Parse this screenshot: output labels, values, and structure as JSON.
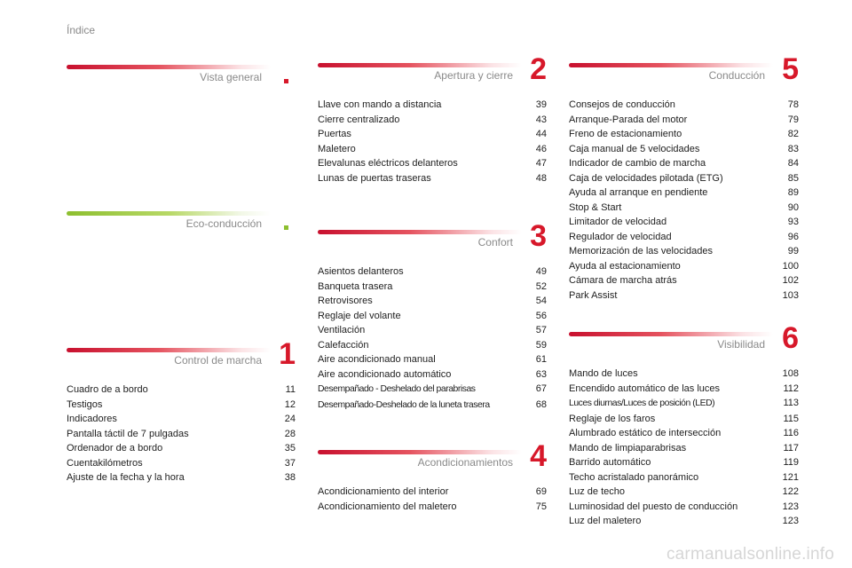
{
  "page_title": "Índice",
  "watermark": "carmanualsonline.info",
  "sections": {
    "vista": {
      "title": "Vista general",
      "number": "",
      "entries": []
    },
    "eco": {
      "title": "Eco-conducción",
      "number": "",
      "entries": []
    },
    "control": {
      "title": "Control de marcha",
      "number": "1",
      "entries": [
        {
          "label": "Cuadro de a bordo",
          "page": "11"
        },
        {
          "label": "Testigos",
          "page": "12"
        },
        {
          "label": "Indicadores",
          "page": "24"
        },
        {
          "label": "Pantalla táctil de 7 pulgadas",
          "page": "28"
        },
        {
          "label": "Ordenador de a bordo",
          "page": "35"
        },
        {
          "label": "Cuentakilómetros",
          "page": "37"
        },
        {
          "label": "Ajuste de la fecha y la hora",
          "page": "38"
        }
      ]
    },
    "apertura": {
      "title": "Apertura y cierre",
      "number": "2",
      "entries": [
        {
          "label": "Llave con mando a distancia",
          "page": "39"
        },
        {
          "label": "Cierre centralizado",
          "page": "43"
        },
        {
          "label": "Puertas",
          "page": "44"
        },
        {
          "label": "Maletero",
          "page": "46"
        },
        {
          "label": "Elevalunas eléctricos delanteros",
          "page": "47"
        },
        {
          "label": "Lunas de puertas traseras",
          "page": "48"
        }
      ]
    },
    "confort": {
      "title": "Confort",
      "number": "3",
      "entries": [
        {
          "label": "Asientos delanteros",
          "page": "49"
        },
        {
          "label": "Banqueta trasera",
          "page": "52"
        },
        {
          "label": "Retrovisores",
          "page": "54"
        },
        {
          "label": "Reglaje del volante",
          "page": "56"
        },
        {
          "label": "Ventilación",
          "page": "57"
        },
        {
          "label": "Calefacción",
          "page": "59"
        },
        {
          "label": "Aire acondicionado manual",
          "page": "61"
        },
        {
          "label": "Aire acondicionado automático",
          "page": "63"
        },
        {
          "label": "Desempañado - Deshelado del parabrisas",
          "page": "67"
        },
        {
          "label": "Desempañado-Deshelado de la luneta trasera",
          "page": "68"
        }
      ]
    },
    "acondicionamientos": {
      "title": "Acondicionamientos",
      "number": "4",
      "entries": [
        {
          "label": "Acondicionamiento del interior",
          "page": "69"
        },
        {
          "label": "Acondicionamiento del maletero",
          "page": "75"
        }
      ]
    },
    "conduccion": {
      "title": "Conducción",
      "number": "5",
      "entries": [
        {
          "label": "Consejos de conducción",
          "page": "78"
        },
        {
          "label": "Arranque-Parada del motor",
          "page": "79"
        },
        {
          "label": "Freno de estacionamiento",
          "page": "82"
        },
        {
          "label": "Caja manual de 5 velocidades",
          "page": "83"
        },
        {
          "label": "Indicador de cambio de marcha",
          "page": "84"
        },
        {
          "label": "Caja de velocidades pilotada (ETG)",
          "page": "85"
        },
        {
          "label": "Ayuda al arranque en pendiente",
          "page": "89"
        },
        {
          "label": "Stop & Start",
          "page": "90"
        },
        {
          "label": "Limitador de velocidad",
          "page": "93"
        },
        {
          "label": "Regulador de velocidad",
          "page": "96"
        },
        {
          "label": "Memorización de las velocidades",
          "page": "99"
        },
        {
          "label": "Ayuda al estacionamiento",
          "page": "100"
        },
        {
          "label": "Cámara de marcha atrás",
          "page": "102"
        },
        {
          "label": "Park Assist",
          "page": "103"
        }
      ]
    },
    "visibilidad": {
      "title": "Visibilidad",
      "number": "6",
      "entries": [
        {
          "label": "Mando de luces",
          "page": "108"
        },
        {
          "label": "Encendido automático de las luces",
          "page": "112"
        },
        {
          "label": "Luces diurnas/Luces de posición (LED)",
          "page": "113"
        },
        {
          "label": "Reglaje de los faros",
          "page": "115"
        },
        {
          "label": "Alumbrado estático de intersección",
          "page": "116"
        },
        {
          "label": "Mando de limpiaparabrisas",
          "page": "117"
        },
        {
          "label": "Barrido automático",
          "page": "119"
        },
        {
          "label": "Techo acristalado panorámico",
          "page": "121"
        },
        {
          "label": "Luz de techo",
          "page": "122"
        },
        {
          "label": "Luminosidad del puesto de conducción",
          "page": "123"
        },
        {
          "label": "Luz del maletero",
          "page": "123"
        }
      ]
    }
  }
}
